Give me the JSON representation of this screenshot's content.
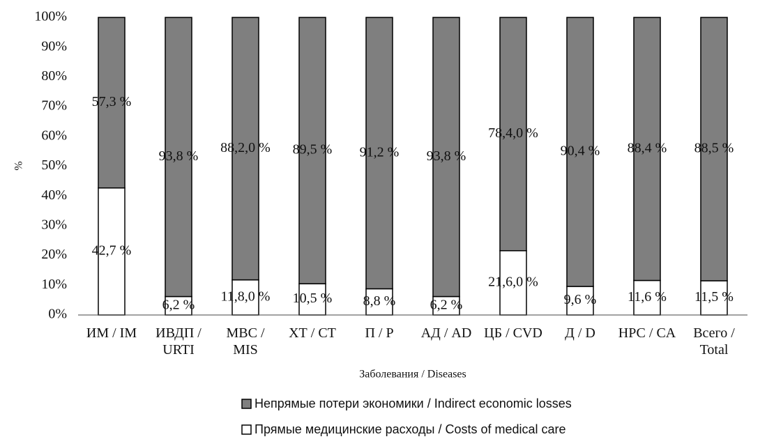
{
  "chart_data": {
    "type": "stacked_bar",
    "y_label": "%",
    "x_label": "Заболевания / Diseases",
    "categories": [
      "ИМ / IM",
      "ИВДП / URTI",
      "МВС / MIS",
      "ХТ / СТ",
      "П / Р",
      "АД / AD",
      "ЦБ / CVD",
      "Д / D",
      "НРС / CA",
      "Всего / Total"
    ],
    "series": [
      {
        "name": "Непрямые потери экономики / Indirect economic losses",
        "color": "#7f7f7f",
        "values": [
          57.3,
          93.8,
          88.2,
          89.5,
          91.2,
          93.8,
          78.4,
          90.4,
          88.4,
          88.5
        ],
        "value_labels": [
          "57,3 %",
          "93,8 %",
          "88,2,0 %",
          "89,5 %",
          "91,2 %",
          "93,8 %",
          "78,4,0 %",
          "90,4 %",
          "88,4 %",
          "88,5 %"
        ]
      },
      {
        "name": "Прямые медицинские расходы / Costs of medical care",
        "color": "#ffffff",
        "values": [
          42.7,
          6.2,
          11.8,
          10.5,
          8.8,
          6.2,
          21.6,
          9.6,
          11.6,
          11.5
        ],
        "value_labels": [
          "42,7 %",
          "6,2 %",
          "11,8,0 %",
          "10,5 %",
          "8,8 %",
          "6,2 %",
          "21,6,0 %",
          "9,6 %",
          "11,6 %",
          "11,5 %"
        ]
      }
    ],
    "ylim": [
      0,
      100
    ],
    "yticks": [
      {
        "value": 0,
        "label": "0%"
      },
      {
        "value": 10,
        "label": "10%"
      },
      {
        "value": 20,
        "label": "20%"
      },
      {
        "value": 30,
        "label": "30%"
      },
      {
        "value": 40,
        "label": "40%"
      },
      {
        "value": 50,
        "label": "50%"
      },
      {
        "value": 60,
        "label": "60%"
      },
      {
        "value": 70,
        "label": "70%"
      },
      {
        "value": 80,
        "label": "80%"
      },
      {
        "value": 90,
        "label": "90%"
      },
      {
        "value": 100,
        "label": "100%"
      }
    ],
    "grid": false
  }
}
